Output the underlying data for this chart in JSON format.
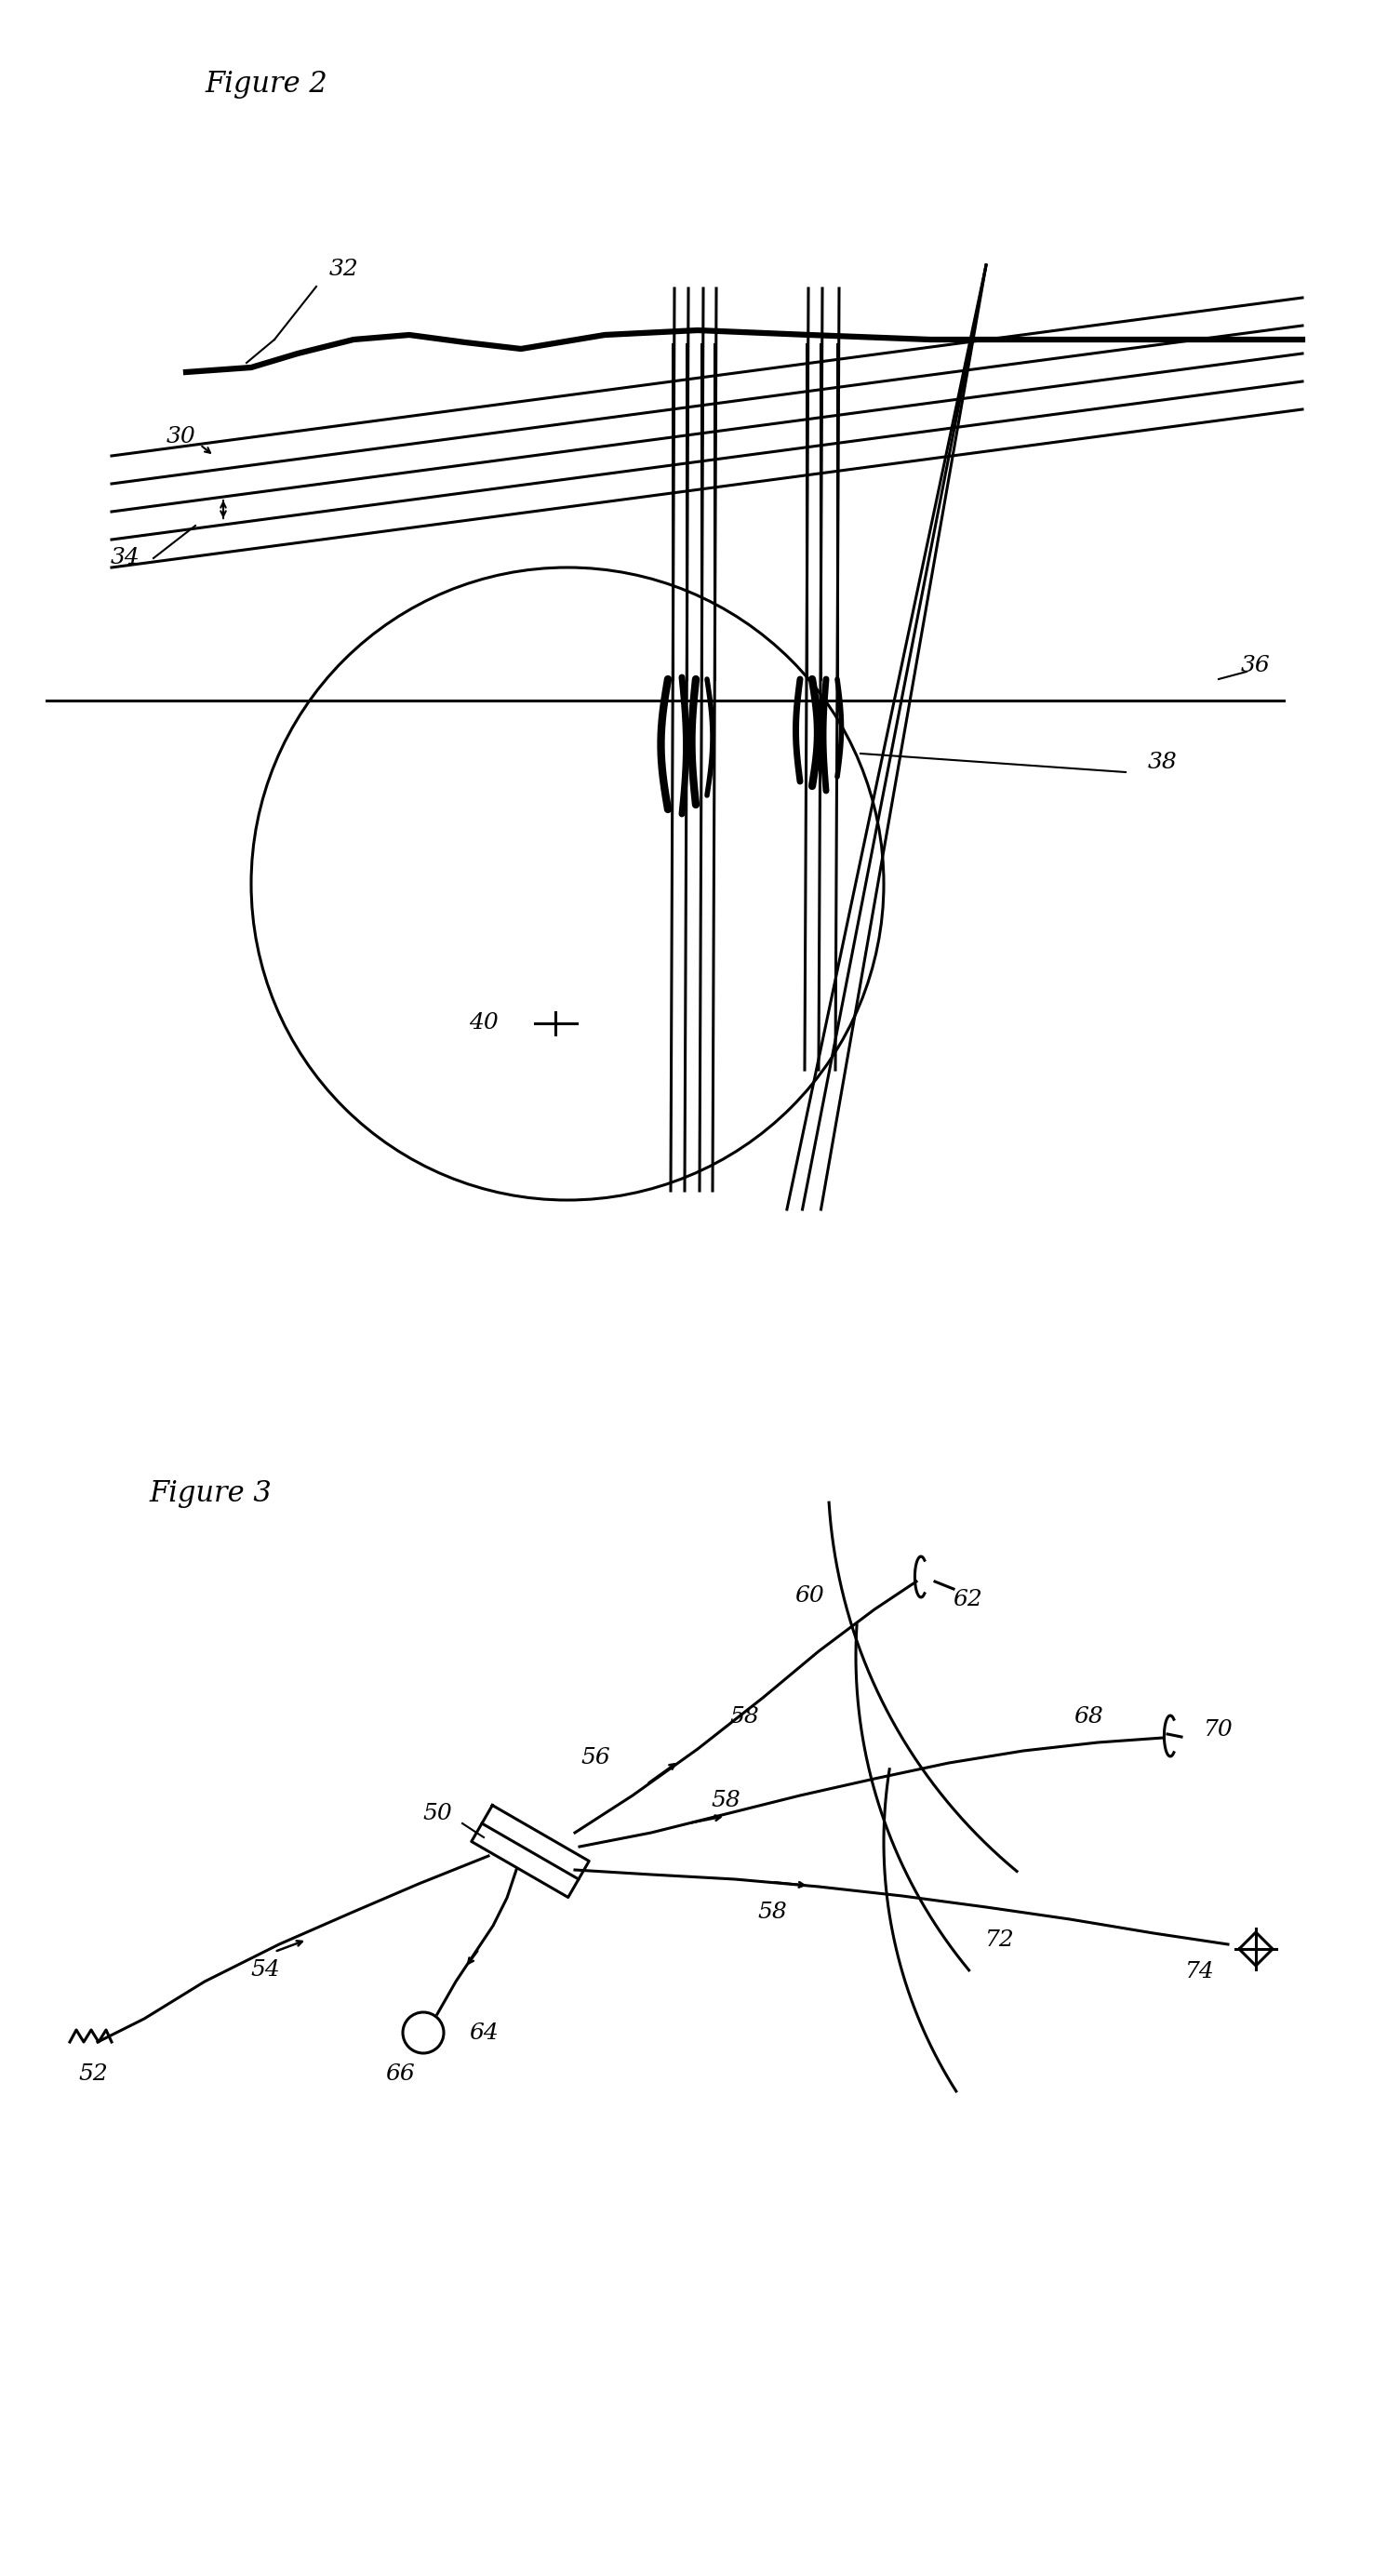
{
  "fig_title1": "Figure 2",
  "fig_title2": "Figure 3",
  "bg_color": "#ffffff",
  "line_color": "#000000",
  "label_fontsize": 18,
  "title_fontsize": 22
}
